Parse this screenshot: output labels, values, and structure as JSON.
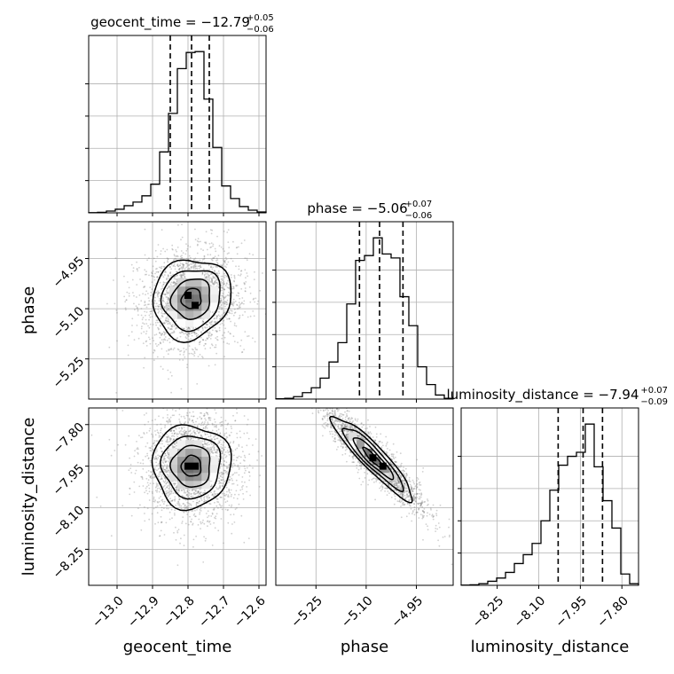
{
  "chart_data": {
    "type": "corner",
    "parameters": [
      {
        "name": "geocent_time",
        "axis_label": "geocent_time",
        "title_main": "geocent_time = −12.79",
        "title_sup": "+0.05",
        "title_sub": "−0.06",
        "range": [
          -13.08,
          -12.58
        ],
        "ticks": [
          -13.0,
          -12.9,
          -12.8,
          -12.7,
          -12.6
        ],
        "tick_labels": [
          "−13.0",
          "−12.9",
          "−12.8",
          "−12.7",
          "−12.6"
        ],
        "quantiles": [
          -12.85,
          -12.79,
          -12.74
        ],
        "histogram": {
          "edges": [
            -13.08,
            -13.055,
            -13.03,
            -13.005,
            -12.98,
            -12.955,
            -12.93,
            -12.905,
            -12.88,
            -12.855,
            -12.83,
            -12.805,
            -12.78,
            -12.755,
            -12.73,
            -12.705,
            -12.68,
            -12.655,
            -12.63,
            -12.605,
            -12.58
          ],
          "counts": [
            1,
            3,
            10,
            20,
            40,
            60,
            95,
            160,
            340,
            555,
            805,
            895,
            900,
            635,
            365,
            150,
            80,
            35,
            15,
            5
          ]
        }
      },
      {
        "name": "phase",
        "axis_label": "phase",
        "title_main": "phase = −5.06",
        "title_sup": "+0.07",
        "title_sub": "−0.06",
        "range": [
          -5.37,
          -4.84
        ],
        "ticks": [
          -5.25,
          -5.1,
          -4.95
        ],
        "tick_labels": [
          "−5.25",
          "−5.10",
          "−4.95"
        ],
        "quantiles": [
          -5.12,
          -5.06,
          -4.99
        ],
        "histogram": {
          "edges": [
            -5.37,
            -5.3435,
            -5.317,
            -5.2905,
            -5.264,
            -5.2375,
            -5.211,
            -5.1845,
            -5.158,
            -5.1315,
            -5.105,
            -5.0785,
            -5.052,
            -5.0255,
            -4.999,
            -4.9725,
            -4.946,
            -4.9195,
            -4.893,
            -4.8665,
            -4.84
          ],
          "counts": [
            2,
            5,
            15,
            40,
            70,
            130,
            230,
            350,
            590,
            860,
            890,
            1000,
            900,
            875,
            635,
            455,
            200,
            90,
            25,
            5
          ]
        }
      },
      {
        "name": "luminosity_distance",
        "axis_label": "luminosity_distance",
        "title_main": "luminosity_distance = −7.94",
        "title_sup": "+0.07",
        "title_sub": "−0.09",
        "range": [
          -8.38,
          -7.74
        ],
        "ticks": [
          -8.25,
          -8.1,
          -7.95,
          -7.8
        ],
        "tick_labels": [
          "−8.25",
          "−8.10",
          "−7.95",
          "−7.80"
        ],
        "quantiles": [
          -8.03,
          -7.94,
          -7.87
        ],
        "histogram": {
          "edges": [
            -8.38,
            -8.348,
            -8.316,
            -8.284,
            -8.252,
            -8.22,
            -8.188,
            -8.156,
            -8.124,
            -8.092,
            -8.06,
            -8.028,
            -7.996,
            -7.964,
            -7.932,
            -7.9,
            -7.868,
            -7.836,
            -7.804,
            -7.772,
            -7.74
          ],
          "counts": [
            1,
            3,
            10,
            25,
            45,
            80,
            135,
            190,
            260,
            400,
            590,
            745,
            800,
            825,
            1000,
            735,
            525,
            355,
            70,
            10
          ]
        }
      }
    ],
    "pairs": [
      {
        "x_param": 0,
        "y_param": 1,
        "peak": [
          -12.79,
          -5.07
        ],
        "correlation": 0.1,
        "sigma": [
          0.055,
          0.06
        ],
        "modal_points": [
          [
            -12.8,
            -5.06
          ],
          [
            -12.78,
            -5.09
          ]
        ]
      },
      {
        "x_param": 0,
        "y_param": 2,
        "peak": [
          -12.79,
          -7.95
        ],
        "correlation": 0.0,
        "sigma": [
          0.055,
          0.075
        ],
        "modal_points": [
          [
            -12.8,
            -7.95
          ],
          [
            -12.78,
            -7.95
          ]
        ]
      },
      {
        "x_param": 1,
        "y_param": 2,
        "peak": [
          -5.08,
          -7.92
        ],
        "correlation": -0.92,
        "sigma": [
          0.06,
          0.075
        ],
        "modal_points": [
          [
            -5.08,
            -7.92
          ],
          [
            -5.05,
            -7.95
          ]
        ]
      }
    ],
    "grid": true,
    "contour_levels_sigma": [
      0.5,
      1.0,
      1.5,
      2.0
    ]
  }
}
